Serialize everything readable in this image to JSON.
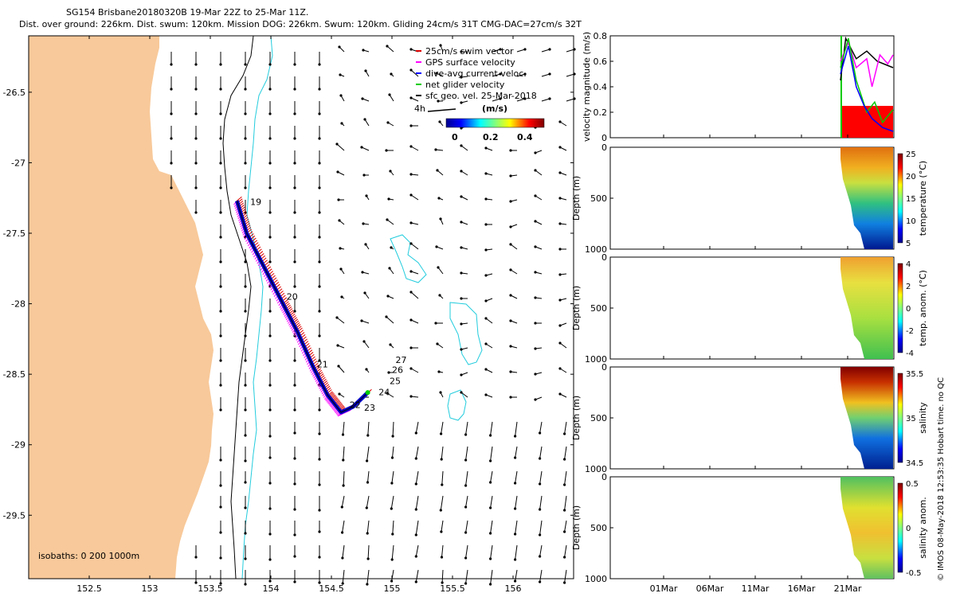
{
  "header": {
    "line1": "SG154 Brisbane20180320B 19-Mar 22Z to 25-Mar 11Z.",
    "line2": "Dist. over ground: 226km. Dist. swum: 120km. Mission DOG: 226km. Swum: 120km. Gliding 24cm/s 31T CMG-DAC=27cm/s 32T"
  },
  "copyright": "© IMOS 08-May-2018 12:53:35 Hobart time. no QC",
  "colors": {
    "land": "#F8C99A",
    "track": "#0000CC",
    "swim": "#DD0000",
    "gps": "#FF00FF",
    "dac": "#0000FF",
    "net": "#00CC00",
    "geo": "#000000",
    "isobath": "#22CCDD",
    "fill": "#FF0000"
  },
  "chart_data": [
    {
      "type": "scatter",
      "role": "map",
      "xticks": [
        "152.5",
        "153",
        "153.5",
        "154",
        "154.5",
        "155",
        "155.5",
        "156"
      ],
      "yticks": [
        "-26.5",
        "-27",
        "-27.5",
        "-28",
        "-28.5",
        "-29",
        "-29.5"
      ],
      "xlim": [
        152.0,
        156.5
      ],
      "ylim": [
        -29.95,
        -26.1
      ],
      "legend": [
        "25cm/s swim vector",
        "GPS surface velocity",
        "dive-avg current veloc.",
        "net glider velocity",
        "sfc geo. vel. 25-Mar-2018"
      ],
      "legend_placement": "top-right",
      "colorbar_label": "(m/s)",
      "colorbar_ticks": [
        "0",
        "0.2",
        "0.4"
      ],
      "scale_label": "4h",
      "isobaths_label": "isobaths: 0   200   1000m",
      "track": [
        [
          153.72,
          -27.27
        ],
        [
          153.8,
          -27.5
        ],
        [
          153.95,
          -27.75
        ],
        [
          154.1,
          -28.0
        ],
        [
          154.22,
          -28.2
        ],
        [
          154.35,
          -28.45
        ],
        [
          154.47,
          -28.65
        ],
        [
          154.58,
          -28.77
        ],
        [
          154.68,
          -28.73
        ],
        [
          154.8,
          -28.63
        ]
      ],
      "day_labels": [
        {
          "text": "19",
          "lon": 153.83,
          "lat": -27.3
        },
        {
          "text": "20",
          "lon": 154.13,
          "lat": -27.97
        },
        {
          "text": "21",
          "lon": 154.38,
          "lat": -28.45
        },
        {
          "text": "22",
          "lon": 154.65,
          "lat": -28.74
        },
        {
          "text": "23",
          "lon": 154.77,
          "lat": -28.76
        },
        {
          "text": "24",
          "lon": 154.89,
          "lat": -28.65
        },
        {
          "text": "25",
          "lon": 154.98,
          "lat": -28.57
        },
        {
          "text": "26",
          "lon": 155.0,
          "lat": -28.49
        },
        {
          "text": "27",
          "lon": 155.03,
          "lat": -28.42
        }
      ]
    },
    {
      "type": "line",
      "ylabel": "velocity magnitude (m/s)",
      "yticks": [
        "0",
        "0.2",
        "0.4",
        "0.6",
        "0.8"
      ],
      "ylim": [
        0,
        0.8
      ],
      "series": [
        {
          "color": "#000000",
          "values": [
            [
              0,
              0.45
            ],
            [
              0.1,
              0.78
            ],
            [
              0.3,
              0.62
            ],
            [
              0.5,
              0.68
            ],
            [
              0.7,
              0.6
            ],
            [
              1,
              0.55
            ]
          ]
        },
        {
          "color": "#FF00FF",
          "values": [
            [
              0,
              0.6
            ],
            [
              0.15,
              0.75
            ],
            [
              0.3,
              0.55
            ],
            [
              0.5,
              0.62
            ],
            [
              0.6,
              0.4
            ],
            [
              0.75,
              0.65
            ],
            [
              0.9,
              0.58
            ],
            [
              1,
              0.65
            ]
          ]
        },
        {
          "color": "#00CC00",
          "values": [
            [
              0,
              0.55
            ],
            [
              0.15,
              0.78
            ],
            [
              0.3,
              0.45
            ],
            [
              0.5,
              0.2
            ],
            [
              0.65,
              0.28
            ],
            [
              0.8,
              0.12
            ],
            [
              1,
              0.22
            ]
          ]
        },
        {
          "color": "#0000FF",
          "values": [
            [
              0,
              0.5
            ],
            [
              0.15,
              0.72
            ],
            [
              0.3,
              0.4
            ],
            [
              0.45,
              0.25
            ],
            [
              0.6,
              0.15
            ],
            [
              0.8,
              0.08
            ],
            [
              1,
              0.05
            ]
          ]
        }
      ],
      "fill_value": 0.25
    },
    {
      "type": "heatmap",
      "ylabel": "Depth (m)",
      "yticks": [
        "0",
        "500",
        "1000"
      ],
      "colorbar_label": "temperature (°C)",
      "colorbar_ticks": [
        "5",
        "10",
        "15",
        "20",
        "25"
      ]
    },
    {
      "type": "heatmap",
      "ylabel": "Depth (m)",
      "yticks": [
        "0",
        "500",
        "1000"
      ],
      "colorbar_label": "temp. anom. (°C)",
      "colorbar_ticks": [
        "-4",
        "-2",
        "0",
        "2",
        "4"
      ]
    },
    {
      "type": "heatmap",
      "ylabel": "Depth (m)",
      "yticks": [
        "0",
        "500",
        "1000"
      ],
      "colorbar_label": "salinity",
      "colorbar_ticks": [
        "34.5",
        "35",
        "35.5"
      ]
    },
    {
      "type": "heatmap",
      "ylabel": "Depth (m)",
      "yticks": [
        "0",
        "500",
        "1000"
      ],
      "colorbar_label": "salinity anom.",
      "colorbar_ticks": [
        "-0.5",
        "0",
        "0.5"
      ],
      "xticks": [
        "01Mar",
        "06Mar",
        "11Mar",
        "16Mar",
        "21Mar"
      ]
    }
  ]
}
